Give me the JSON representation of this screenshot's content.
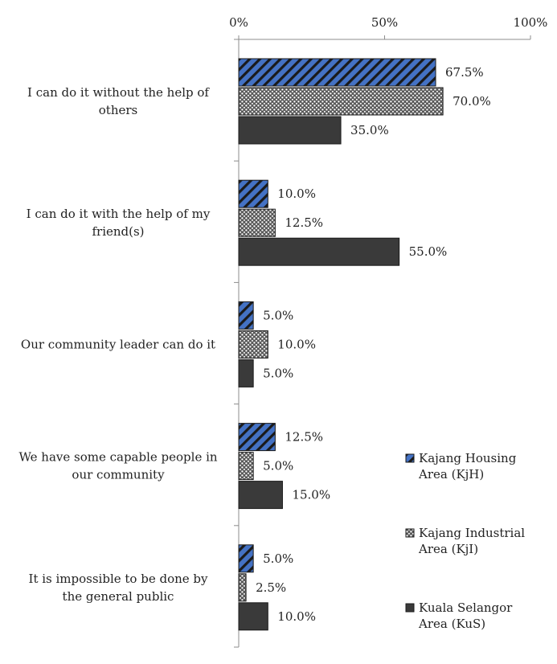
{
  "chart_data": {
    "type": "bar",
    "orientation": "horizontal",
    "x_axis_position": "top",
    "xlim": [
      0,
      100
    ],
    "x_ticks": [
      0,
      50,
      100
    ],
    "x_tick_labels": [
      "0%",
      "50%",
      "100%"
    ],
    "categories": [
      [
        "I can do it without the help of",
        "others"
      ],
      [
        "I can do it with the help of my",
        "friend(s)"
      ],
      [
        "Our community leader can do it"
      ],
      [
        "We have some capable people in",
        "our community"
      ],
      [
        "It is impossible to be done by",
        "the general public"
      ]
    ],
    "series": [
      {
        "name": [
          "Kajang Housing",
          "Area (KjH)"
        ],
        "pattern": "diagonal-hatch",
        "color": "#4472C4",
        "values": [
          67.5,
          10.0,
          5.0,
          12.5,
          5.0
        ],
        "labels": [
          "67.5%",
          "10.0%",
          "5.0%",
          "12.5%",
          "5.0%"
        ]
      },
      {
        "name": [
          "Kajang Industrial",
          "Area (KjI)"
        ],
        "pattern": "dotted",
        "color": "#7f7f7f",
        "values": [
          70.0,
          12.5,
          10.0,
          5.0,
          2.5
        ],
        "labels": [
          "70.0%",
          "12.5%",
          "10.0%",
          "5.0%",
          "2.5%"
        ]
      },
      {
        "name": [
          "Kuala Selangor",
          "Area (KuS)"
        ],
        "pattern": "solid",
        "color": "#3a3a3a",
        "values": [
          35.0,
          55.0,
          5.0,
          15.0,
          10.0
        ],
        "labels": [
          "35.0%",
          "55.0%",
          "5.0%",
          "15.0%",
          "10.0%"
        ]
      }
    ],
    "legend_position": "bottom-right",
    "grid": false
  }
}
